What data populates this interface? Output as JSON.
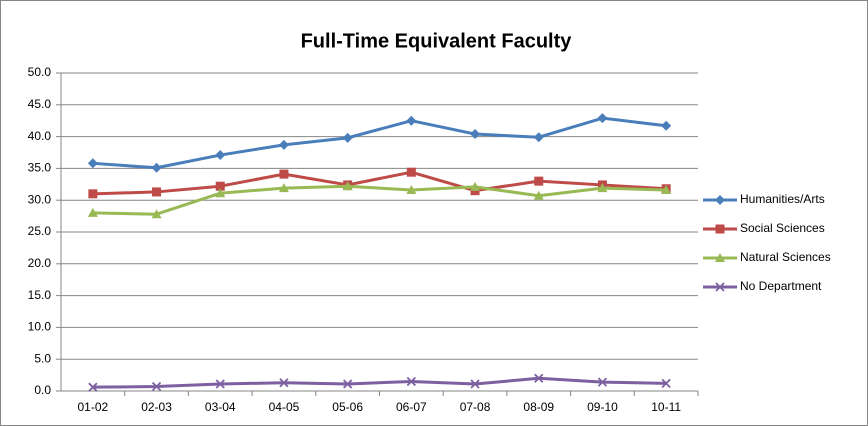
{
  "chart_data": {
    "type": "line",
    "title": "Full-Time Equivalent Faculty",
    "categories": [
      "01-02",
      "02-03",
      "03-04",
      "04-05",
      "05-06",
      "06-07",
      "07-08",
      "08-09",
      "09-10",
      "10-11"
    ],
    "series": [
      {
        "name": "Humanities/Arts",
        "color": "#4a7ebb",
        "marker": "diamond",
        "values": [
          35.8,
          35.1,
          37.1,
          38.7,
          39.8,
          42.5,
          40.4,
          39.9,
          42.9,
          41.7
        ]
      },
      {
        "name": "Social Sciences",
        "color": "#be4b48",
        "marker": "square",
        "values": [
          31.0,
          31.3,
          32.2,
          34.1,
          32.4,
          34.4,
          31.5,
          33.0,
          32.4,
          31.8
        ]
      },
      {
        "name": "Natural Sciences",
        "color": "#98b954",
        "marker": "triangle",
        "values": [
          28.0,
          27.8,
          31.1,
          31.9,
          32.2,
          31.6,
          32.1,
          30.7,
          31.9,
          31.6
        ]
      },
      {
        "name": "No Department",
        "color": "#7d60a0",
        "marker": "x",
        "values": [
          0.6,
          0.7,
          1.1,
          1.3,
          1.1,
          1.5,
          1.1,
          2.0,
          1.4,
          1.2
        ]
      }
    ],
    "ylim": [
      0,
      50
    ],
    "yticks": [
      {
        "value": 0,
        "label": "0.0"
      },
      {
        "value": 5,
        "label": "5.0"
      },
      {
        "value": 10,
        "label": "10.0"
      },
      {
        "value": 15,
        "label": "15.0"
      },
      {
        "value": 20,
        "label": "20.0"
      },
      {
        "value": 25,
        "label": "25.0"
      },
      {
        "value": 30,
        "label": "30.0"
      },
      {
        "value": 35,
        "label": "35.0"
      },
      {
        "value": 40,
        "label": "40.0"
      },
      {
        "value": 45,
        "label": "45.0"
      },
      {
        "value": 50,
        "label": "50.0"
      }
    ],
    "grid": true,
    "legend": "right"
  }
}
